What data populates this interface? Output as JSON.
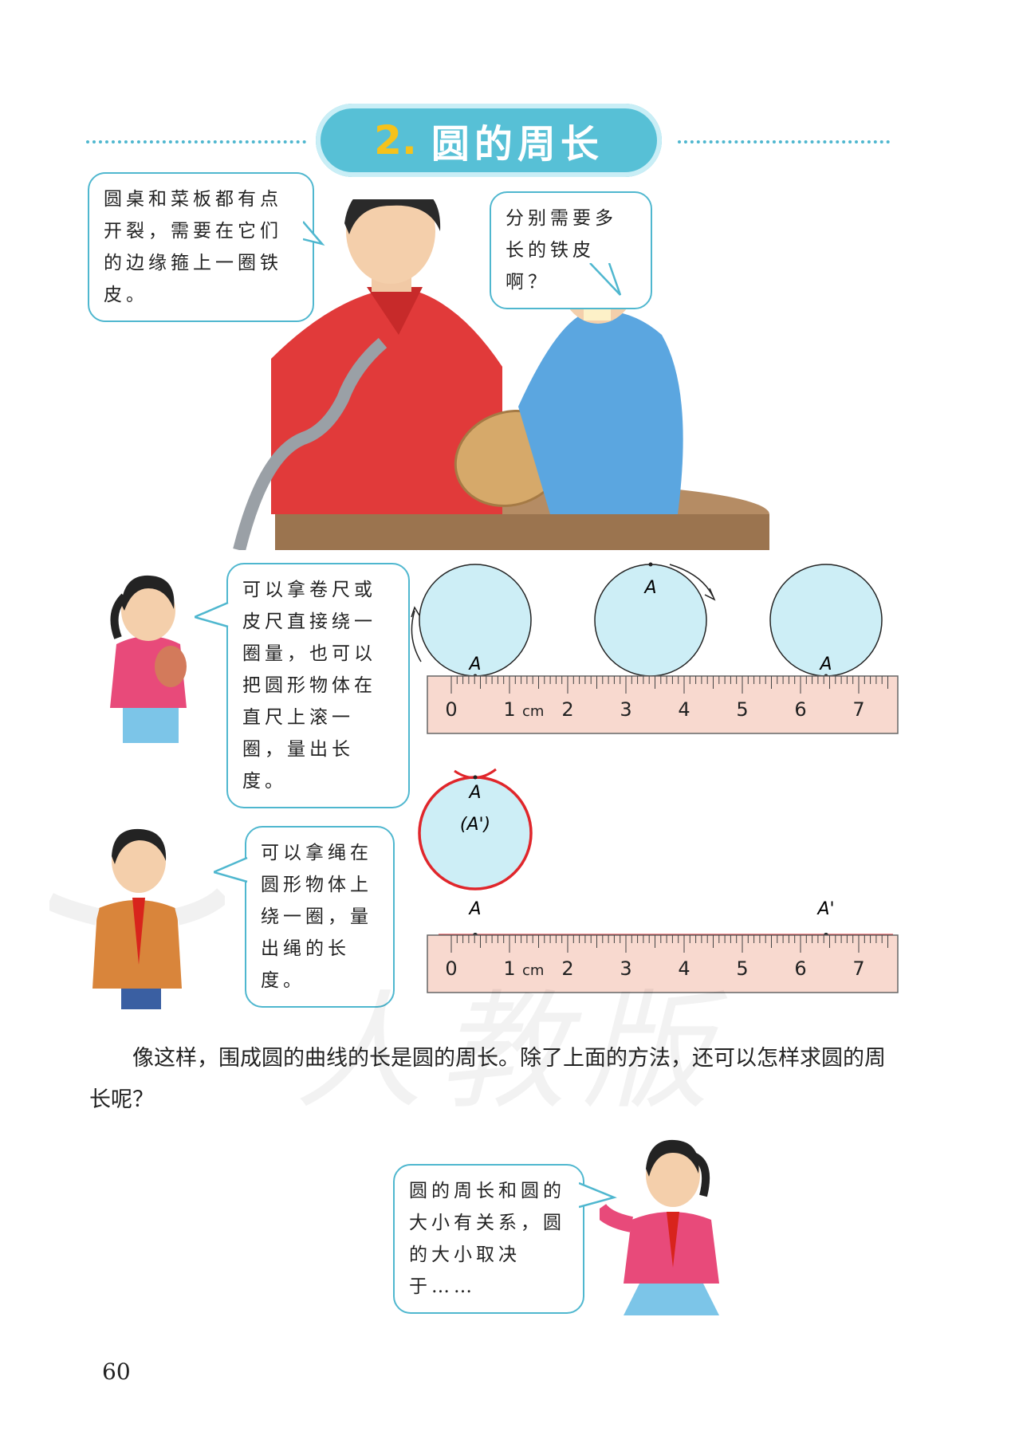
{
  "header": {
    "number": "2.",
    "title": "圆的周长"
  },
  "bubbles": {
    "teacher": "圆桌和菜板都有点开裂，需要在它们的边缘箍上一圈铁皮。",
    "boy_top": "分别需要多长的铁皮啊？",
    "girl_roll": "可以拿卷尺或皮尺直接绕一圈量，也可以把圆形物体在直尺上滚一圈，量出长度。",
    "boy_rope": "可以拿绳在圆形物体上绕一圈，量出绳的长度。",
    "girl_bottom": "圆的周长和圆的大小有关系，圆的大小取决于……"
  },
  "diagram_roll": {
    "point_label": "A",
    "ruler_ticks": [
      "0",
      "1",
      "2",
      "3",
      "4",
      "5",
      "6",
      "7"
    ],
    "unit": "cm"
  },
  "diagram_rope": {
    "circle_label_top": "A",
    "circle_label_bottom": "(A')",
    "line_label_start": "A",
    "line_label_end": "A'",
    "ruler_ticks": [
      "0",
      "1",
      "2",
      "3",
      "4",
      "5",
      "6",
      "7"
    ],
    "unit": "cm"
  },
  "paragraph": "像这样，围成圆的曲线的长是圆的周长。除了上面的方法，还可以怎样求圆的周长呢？",
  "page_number": "60",
  "colors": {
    "accent": "#57c0d6",
    "number": "#f5c21b",
    "circle_fill": "#cdeef6",
    "ruler": "#f8d9cf",
    "rope": "#e0262b"
  }
}
